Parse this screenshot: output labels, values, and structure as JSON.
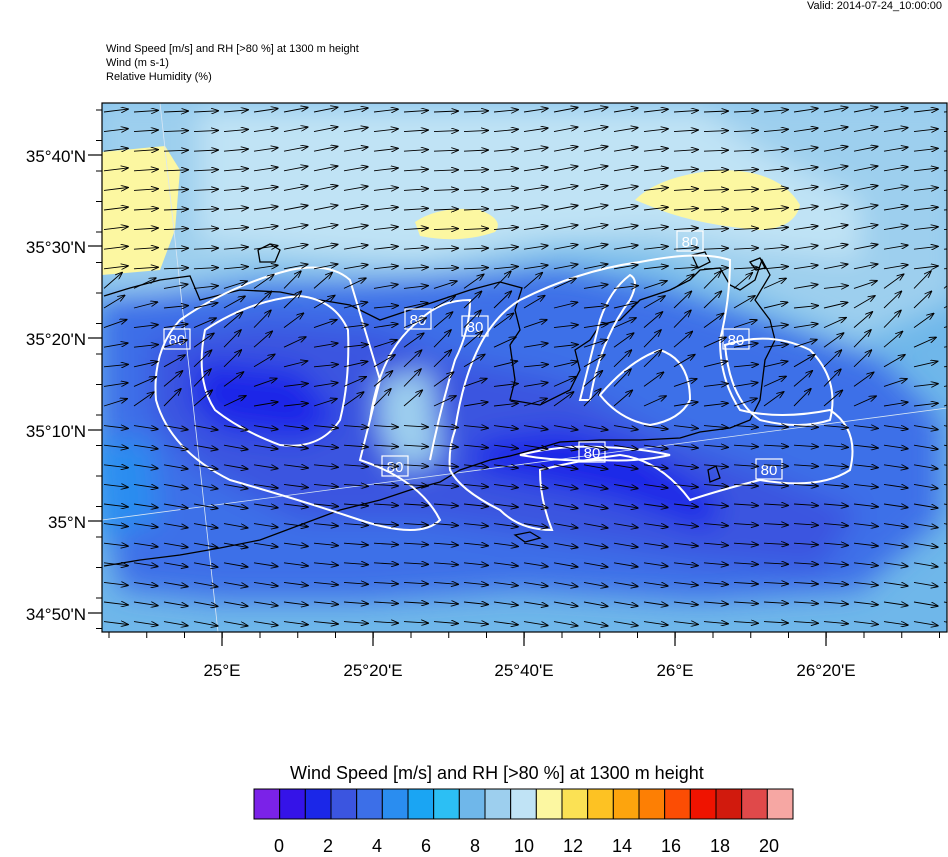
{
  "valid_time": "Valid: 2014-07-24_10:00:00",
  "header": {
    "line1": "Wind Speed [m/s] and RH [>80 %] at 1300 m height",
    "line2": "Wind   (m s-1)",
    "line3": "Relative Humidity   (%)"
  },
  "map": {
    "lat_labels": [
      "35°40'N",
      "35°30'N",
      "35°20'N",
      "35°10'N",
      "35°N",
      "34°50'N"
    ],
    "lon_labels": [
      "25°E",
      "25°20'E",
      "25°40'E",
      "26°E",
      "26°20'E"
    ],
    "contour_label": "80",
    "coast_color": "#000000",
    "contour_color": "#ffffff",
    "vector_color": "#000000"
  },
  "colorbar": {
    "title": "Wind Speed [m/s] and RH [>80 %] at 1300 m height",
    "colors": [
      "#7b22e8",
      "#3513e8",
      "#1b27e8",
      "#3b55e0",
      "#3c6fe8",
      "#2a8df0",
      "#1aa5f3",
      "#2cbff4",
      "#6fb7ea",
      "#9dcfee",
      "#c0e3f5",
      "#fcf7a1",
      "#fbe154",
      "#fdc223",
      "#fda40d",
      "#fd7f04",
      "#fc4d04",
      "#ef1300",
      "#d11a0d",
      "#e0494a",
      "#f6a7a3"
    ],
    "ticks": [
      "0",
      "2",
      "4",
      "6",
      "8",
      "10",
      "12",
      "14",
      "16",
      "18",
      "20"
    ]
  }
}
